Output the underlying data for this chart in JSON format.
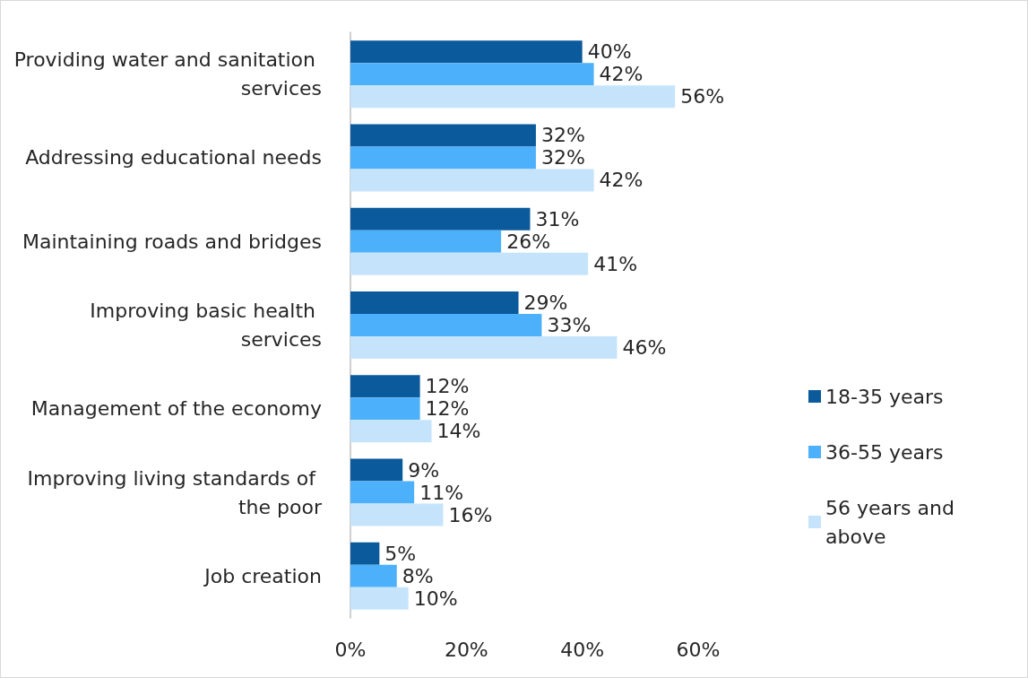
{
  "chart_data": {
    "type": "bar",
    "orientation": "horizontal",
    "categories": [
      "Providing water and sanitation services",
      "Addressing educational needs",
      "Maintaining roads and bridges",
      "Improving basic health services",
      "Management of the economy",
      "Improving living standards of the poor",
      "Job creation"
    ],
    "series": [
      {
        "name": "18-35 years",
        "color": "#0b5a9c",
        "values": [
          40,
          32,
          31,
          29,
          12,
          9,
          5
        ],
        "value_labels": [
          "40%",
          "32%",
          "31%",
          "29%",
          "12%",
          "9%",
          "5%"
        ]
      },
      {
        "name": "36-55 years",
        "color": "#4db0fa",
        "values": [
          42,
          32,
          26,
          33,
          12,
          11,
          8
        ],
        "value_labels": [
          "42%",
          "32%",
          "26%",
          "33%",
          "12%",
          "11%",
          "8%"
        ]
      },
      {
        "name": "56 years and above",
        "color": "#c5e4fb",
        "values": [
          56,
          42,
          41,
          46,
          14,
          16,
          10
        ],
        "value_labels": [
          "56%",
          "42%",
          "41%",
          "46%",
          "14%",
          "16%",
          "10%"
        ]
      }
    ],
    "xlim": [
      0,
      60
    ],
    "xticks": [
      {
        "value": 0,
        "label": "0%"
      },
      {
        "value": 20,
        "label": "20%"
      },
      {
        "value": 40,
        "label": "40%"
      },
      {
        "value": 60,
        "label": "60%"
      }
    ],
    "grid": false,
    "legend": "right"
  }
}
